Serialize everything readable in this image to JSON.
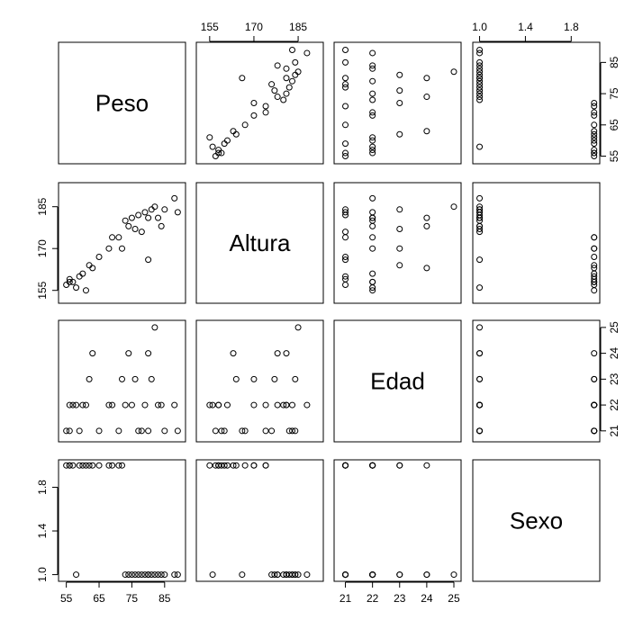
{
  "chart_data": {
    "type": "scatter",
    "kind": "scatterplot-matrix",
    "variables": [
      {
        "name": "Peso",
        "lim": [
          54,
          90
        ]
      },
      {
        "name": "Altura",
        "lim": [
          152,
          192
        ]
      },
      {
        "name": "Edad",
        "lim": [
          20.75,
          25.1
        ]
      },
      {
        "name": "Sexo",
        "lim": [
          0.98,
          2.01
        ]
      }
    ],
    "axis_ticks": [
      {
        "var": 0,
        "side": "bottom",
        "values": [
          55,
          65,
          75,
          85
        ],
        "labels": [
          "55",
          "65",
          "75",
          "85"
        ]
      },
      {
        "var": 0,
        "side": "right",
        "values": [
          55,
          65,
          75,
          85
        ],
        "labels": [
          "55",
          "65",
          "75",
          "85"
        ]
      },
      {
        "var": 1,
        "side": "top",
        "values": [
          155,
          170,
          185
        ],
        "labels": [
          "155",
          "170",
          "185"
        ]
      },
      {
        "var": 1,
        "side": "left",
        "values": [
          155,
          170,
          185
        ],
        "labels": [
          "155",
          "170",
          "185"
        ]
      },
      {
        "var": 2,
        "side": "bottom",
        "values": [
          21,
          22,
          23,
          24,
          25
        ],
        "labels": [
          "21",
          "22",
          "23",
          "24",
          "25"
        ]
      },
      {
        "var": 2,
        "side": "right",
        "values": [
          21,
          22,
          23,
          24,
          25
        ],
        "labels": [
          "21",
          "22",
          "23",
          "24",
          "25"
        ]
      },
      {
        "var": 3,
        "side": "top",
        "values": [
          1.0,
          1.4,
          1.8
        ],
        "labels": [
          "1.0",
          "1.4",
          "1.8"
        ]
      },
      {
        "var": 3,
        "side": "left",
        "values": [
          1.0,
          1.4,
          1.8
        ],
        "labels": [
          "1.0",
          "1.4",
          "1.8"
        ]
      }
    ],
    "observations": [
      [
        55,
        157,
        21,
        2
      ],
      [
        56,
        158,
        22,
        2
      ],
      [
        56,
        159,
        21,
        2
      ],
      [
        57,
        158,
        22,
        2
      ],
      [
        58,
        156,
        22,
        1
      ],
      [
        59,
        160,
        21,
        2
      ],
      [
        60,
        161,
        22,
        2
      ],
      [
        61,
        155,
        22,
        2
      ],
      [
        62,
        164,
        23,
        2
      ],
      [
        63,
        163,
        24,
        2
      ],
      [
        65,
        167,
        21,
        2
      ],
      [
        68,
        170,
        22,
        2
      ],
      [
        69,
        174,
        22,
        2
      ],
      [
        71,
        174,
        21,
        2
      ],
      [
        72,
        170,
        23,
        2
      ],
      [
        73,
        180,
        22,
        1
      ],
      [
        74,
        178,
        24,
        1
      ],
      [
        75,
        181,
        22,
        1
      ],
      [
        76,
        177,
        23,
        1
      ],
      [
        77,
        182,
        21,
        1
      ],
      [
        78,
        176,
        21,
        1
      ],
      [
        79,
        183,
        22,
        1
      ],
      [
        80,
        181,
        24,
        1
      ],
      [
        80,
        166,
        21,
        1
      ],
      [
        81,
        184,
        23,
        1
      ],
      [
        82,
        185,
        25,
        1
      ],
      [
        83,
        181,
        22,
        1
      ],
      [
        84,
        178,
        22,
        1
      ],
      [
        85,
        184,
        21,
        1
      ],
      [
        88,
        188,
        22,
        1
      ],
      [
        89,
        183,
        21,
        1
      ]
    ]
  }
}
